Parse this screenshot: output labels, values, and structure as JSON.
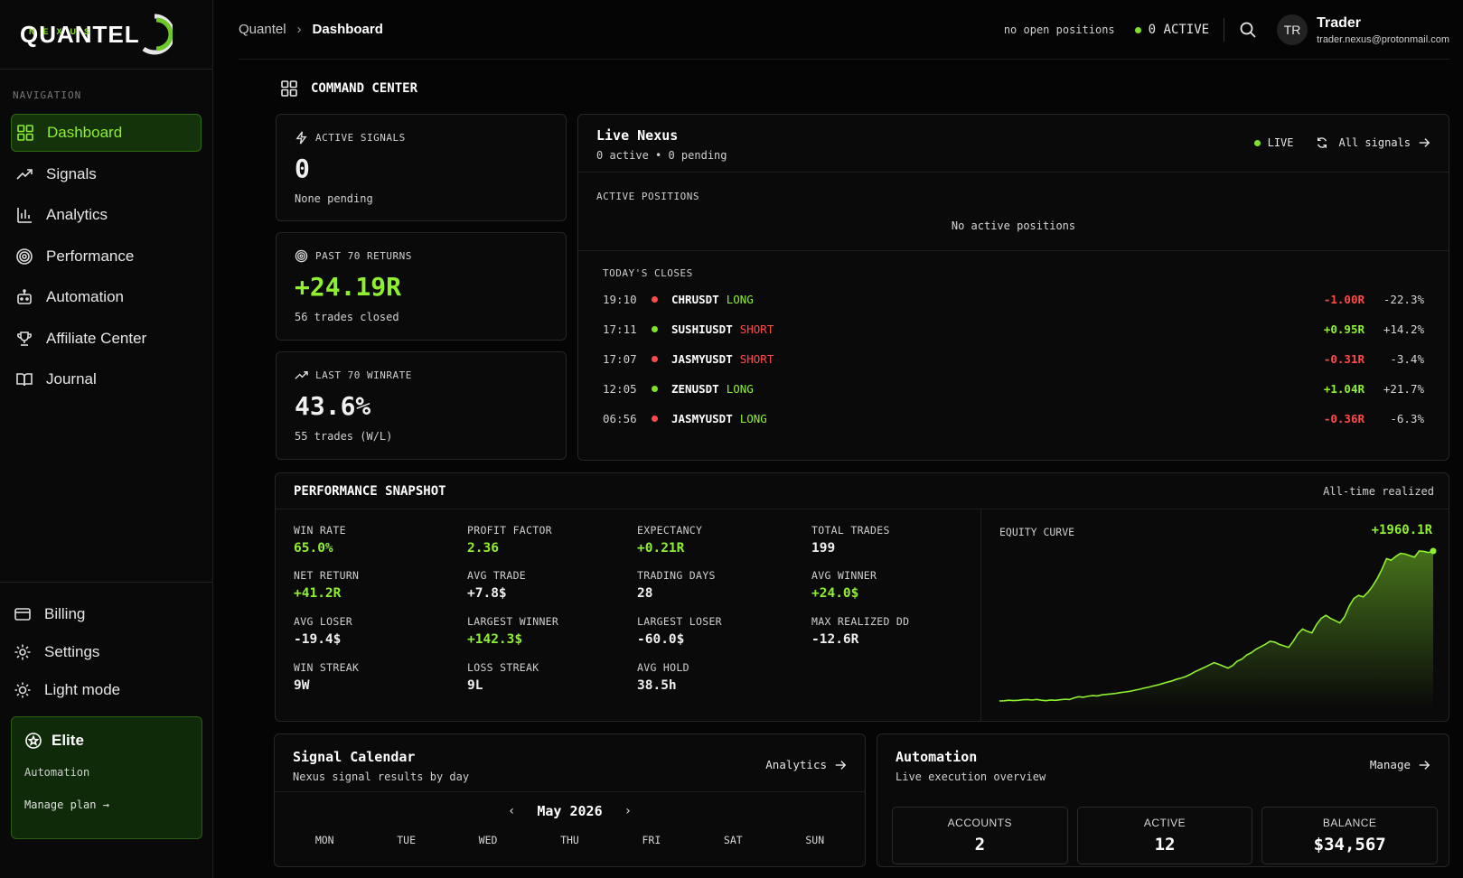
{
  "brand": {
    "name": "QUANTEL",
    "sub": "NEXUS"
  },
  "sidebar": {
    "nav_label": "NAVIGATION",
    "items": [
      {
        "label": "Dashboard",
        "icon": "grid-icon"
      },
      {
        "label": "Signals",
        "icon": "trend-icon"
      },
      {
        "label": "Analytics",
        "icon": "bar-chart-icon"
      },
      {
        "label": "Performance",
        "icon": "target-icon"
      },
      {
        "label": "Automation",
        "icon": "robot-icon"
      },
      {
        "label": "Affiliate Center",
        "icon": "trophy-icon"
      },
      {
        "label": "Journal",
        "icon": "book-icon"
      }
    ],
    "bottom_items": [
      {
        "label": "Billing",
        "icon": "card-icon"
      },
      {
        "label": "Settings",
        "icon": "gear-icon"
      },
      {
        "label": "Light mode",
        "icon": "sun-icon"
      }
    ],
    "plan": {
      "title": "Elite",
      "subtitle": "Automation",
      "link": "Manage plan →"
    }
  },
  "header": {
    "breadcrumb_root": "Quantel",
    "breadcrumb_current": "Dashboard",
    "positions_text": "no open positions",
    "active_text": "0 ACTIVE",
    "user_initials": "TR",
    "user_name": "Trader",
    "user_email": "trader.nexus@protonmail.com"
  },
  "section_title": "COMMAND CENTER",
  "stats": [
    {
      "label": "ACTIVE SIGNALS",
      "value": "0",
      "sub": "None pending",
      "icon": "bolt-icon"
    },
    {
      "label": "PAST 70 RETURNS",
      "value": "+24.19R",
      "sub": "56 trades closed",
      "icon": "target-icon"
    },
    {
      "label": "LAST 70 WINRATE",
      "value": "43.6%",
      "sub": "55 trades (W/L)",
      "icon": "trend-icon"
    }
  ],
  "live": {
    "title": "Live Nexus",
    "subtitle": "0 active • 0 pending",
    "live_label": "LIVE",
    "all_signals": "All signals",
    "active_positions_label": "ACTIVE POSITIONS",
    "no_positions": "No active positions",
    "closes_label": "TODAY'S CLOSES",
    "closes": [
      {
        "time": "19:10",
        "symbol": "CHRUSDT",
        "side": "LONG",
        "r": "-1.00R",
        "pct": "-22.3%",
        "win": false
      },
      {
        "time": "17:11",
        "symbol": "SUSHIUSDT",
        "side": "SHORT",
        "r": "+0.95R",
        "pct": "+14.2%",
        "win": true
      },
      {
        "time": "17:07",
        "symbol": "JASMYUSDT",
        "side": "SHORT",
        "r": "-0.31R",
        "pct": "-3.4%",
        "win": false
      },
      {
        "time": "12:05",
        "symbol": "ZENUSDT",
        "side": "LONG",
        "r": "+1.04R",
        "pct": "+21.7%",
        "win": true
      },
      {
        "time": "06:56",
        "symbol": "JASMYUSDT",
        "side": "LONG",
        "r": "-0.36R",
        "pct": "-6.3%",
        "win": false
      }
    ]
  },
  "performance": {
    "title": "PERFORMANCE SNAPSHOT",
    "scope": "All-time realized",
    "metrics": [
      {
        "label": "WIN RATE",
        "value": "65.0%",
        "green": true
      },
      {
        "label": "PROFIT FACTOR",
        "value": "2.36",
        "green": true
      },
      {
        "label": "EXPECTANCY",
        "value": "+0.21R",
        "green": true
      },
      {
        "label": "TOTAL TRADES",
        "value": "199",
        "green": false
      },
      {
        "label": "NET RETURN",
        "value": "+41.2R",
        "green": true
      },
      {
        "label": "AVG TRADE",
        "value": "+7.8$",
        "green": false
      },
      {
        "label": "TRADING DAYS",
        "value": "28",
        "green": false
      },
      {
        "label": "AVG WINNER",
        "value": "+24.0$",
        "green": true
      },
      {
        "label": "AVG LOSER",
        "value": "-19.4$",
        "green": false
      },
      {
        "label": "LARGEST WINNER",
        "value": "+142.3$",
        "green": true
      },
      {
        "label": "LARGEST LOSER",
        "value": "-60.0$",
        "green": false
      },
      {
        "label": "MAX REALIZED DD",
        "value": "-12.6R",
        "green": false
      },
      {
        "label": "WIN STREAK",
        "value": "9W",
        "green": false
      },
      {
        "label": "LOSS STREAK",
        "value": "9L",
        "green": false
      },
      {
        "label": "AVG HOLD",
        "value": "38.5h",
        "green": false
      }
    ],
    "equity_label": "EQUITY CURVE",
    "equity_value": "+1960.1R"
  },
  "chart_data": {
    "type": "area",
    "title": "EQUITY CURVE",
    "color": "#8ef02e",
    "values": [
      0,
      2,
      10,
      5,
      8,
      15,
      18,
      12,
      20,
      10,
      4,
      12,
      8,
      16,
      22,
      18,
      40,
      55,
      48,
      62,
      70,
      66,
      80,
      86,
      92,
      100,
      110,
      118,
      126,
      140,
      152,
      168,
      180,
      196,
      210,
      228,
      246,
      262,
      284,
      300,
      320,
      350,
      384,
      412,
      440,
      470,
      500,
      480,
      455,
      430,
      462,
      520,
      548,
      600,
      630,
      676,
      708,
      740,
      780,
      770,
      740,
      720,
      700,
      780,
      880,
      940,
      910,
      890,
      1000,
      1080,
      1120,
      1080,
      1050,
      1020,
      1100,
      1240,
      1340,
      1380,
      1360,
      1420,
      1500,
      1600,
      1720,
      1860,
      1840,
      1890,
      1930,
      1920,
      1900,
      1880,
      1960.1,
      1955,
      1940,
      1960.1
    ]
  },
  "calendar": {
    "title": "Signal Calendar",
    "subtitle": "Nexus signal results by day",
    "link": "Analytics",
    "month": "May 2026",
    "days": [
      "MON",
      "TUE",
      "WED",
      "THU",
      "FRI",
      "SAT",
      "SUN"
    ]
  },
  "automation": {
    "title": "Automation",
    "subtitle": "Live execution overview",
    "link": "Manage",
    "boxes": [
      {
        "label": "ACCOUNTS",
        "value": "2"
      },
      {
        "label": "ACTIVE",
        "value": "12"
      },
      {
        "label": "BALANCE",
        "value": "$34,567"
      }
    ]
  }
}
